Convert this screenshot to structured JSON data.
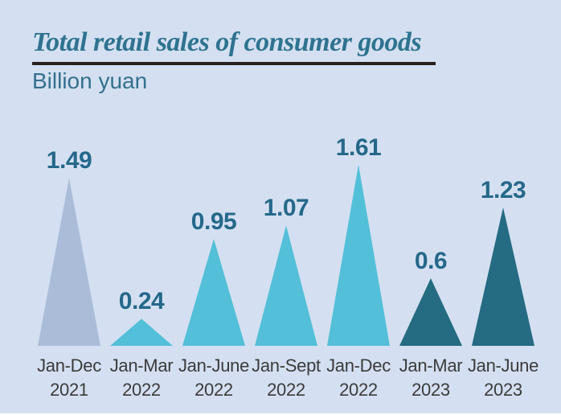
{
  "header": {
    "title": "Total retail sales of consumer goods",
    "subtitle": "Billion yuan"
  },
  "colors": {
    "background": "#d4e0f1",
    "title": "#2e7390",
    "subtitle": "#34708e",
    "underline": "#29211e",
    "value_label": "#25688a",
    "category_label": "#3b3b3b",
    "bar_2021": "#aabcd8",
    "bar_2022": "#54bfd8",
    "bar_2023": "#256b82"
  },
  "chart_data": {
    "type": "bar",
    "bar_shape": "triangle",
    "title": "Total retail sales of consumer goods",
    "ylabel": "Billion yuan",
    "ylim": [
      0,
      1.7
    ],
    "grid": false,
    "legend": false,
    "categories": [
      "Jan-Dec 2021",
      "Jan-Mar 2022",
      "Jan-June 2022",
      "Jan-Sept 2022",
      "Jan-Dec 2022",
      "Jan-Mar 2023",
      "Jan-June 2023"
    ],
    "values": [
      1.49,
      0.24,
      0.95,
      1.07,
      1.61,
      0.6,
      1.23
    ],
    "items": [
      {
        "period": "Jan-Dec",
        "year": "2021",
        "value": 1.49,
        "label": "1.49",
        "color": "#aabcd8"
      },
      {
        "period": "Jan-Mar",
        "year": "2022",
        "value": 0.24,
        "label": "0.24",
        "color": "#54bfd8"
      },
      {
        "period": "Jan-June",
        "year": "2022",
        "value": 0.95,
        "label": "0.95",
        "color": "#54bfd8"
      },
      {
        "period": "Jan-Sept",
        "year": "2022",
        "value": 1.07,
        "label": "1.07",
        "color": "#54bfd8"
      },
      {
        "period": "Jan-Dec",
        "year": "2022",
        "value": 1.61,
        "label": "1.61",
        "color": "#54bfd8"
      },
      {
        "period": "Jan-Mar",
        "year": "2023",
        "value": 0.6,
        "label": "0.6",
        "color": "#256b82"
      },
      {
        "period": "Jan-June",
        "year": "2023",
        "value": 1.23,
        "label": "1.23",
        "color": "#256b82"
      }
    ]
  }
}
